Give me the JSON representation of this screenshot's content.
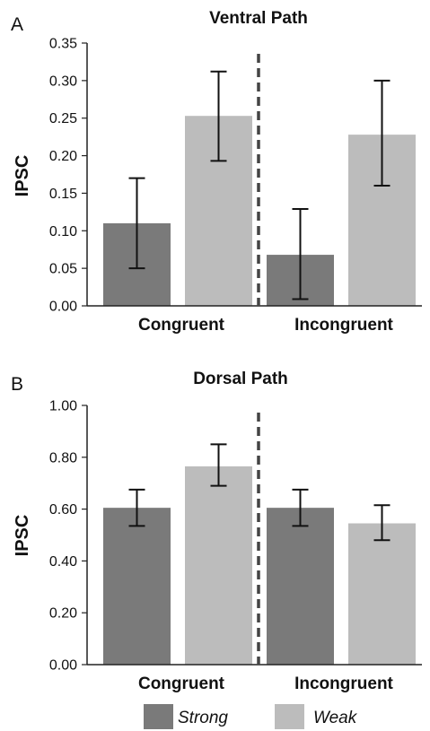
{
  "colors": {
    "strong": "#7a7a7a",
    "weak": "#bcbcbc",
    "axis": "#222222",
    "divider": "#444444"
  },
  "legend": {
    "strong": "Strong",
    "weak": "Weak"
  },
  "chart_data": [
    {
      "type": "bar",
      "panel": "A",
      "title": "Ventral Path",
      "ylabel": "IPSC",
      "ylim": [
        0,
        0.35
      ],
      "yticks": [
        "0.00",
        "0.05",
        "0.10",
        "0.15",
        "0.20",
        "0.25",
        "0.30",
        "0.35"
      ],
      "categories": [
        "Congruent",
        "Incongruent"
      ],
      "series": [
        {
          "name": "Strong",
          "values": [
            0.11,
            0.068
          ],
          "err_low": [
            0.05,
            0.009
          ],
          "err_high": [
            0.17,
            0.129
          ]
        },
        {
          "name": "Weak",
          "values": [
            0.253,
            0.228
          ],
          "err_low": [
            0.193,
            0.16
          ],
          "err_high": [
            0.312,
            0.3
          ]
        }
      ]
    },
    {
      "type": "bar",
      "panel": "B",
      "title": "Dorsal Path",
      "ylabel": "IPSC",
      "ylim": [
        0,
        1.0
      ],
      "yticks": [
        "0.00",
        "0.20",
        "0.40",
        "0.60",
        "0.80",
        "1.00"
      ],
      "categories": [
        "Congruent",
        "Incongruent"
      ],
      "series": [
        {
          "name": "Strong",
          "values": [
            0.605,
            0.605
          ],
          "err_low": [
            0.535,
            0.535
          ],
          "err_high": [
            0.675,
            0.675
          ]
        },
        {
          "name": "Weak",
          "values": [
            0.765,
            0.545
          ],
          "err_low": [
            0.69,
            0.48
          ],
          "err_high": [
            0.85,
            0.615
          ]
        }
      ]
    }
  ]
}
